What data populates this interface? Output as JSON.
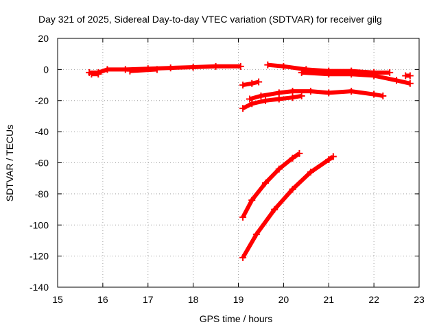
{
  "chart_data": {
    "type": "scatter",
    "title": "Day 321 of 2025, Sidereal Day-to-day VTEC variation (SDTVAR) for receiver gilg",
    "xlabel": "GPS time / hours",
    "ylabel": "SDTVAR / TECUs",
    "xlim": [
      15,
      23
    ],
    "ylim": [
      -140,
      20
    ],
    "xticks": [
      "15",
      "16",
      "17",
      "18",
      "19",
      "20",
      "21",
      "22",
      "23"
    ],
    "yticks": [
      "20",
      "0",
      "-20",
      "-40",
      "-60",
      "-80",
      "-100",
      "-120",
      "-140"
    ],
    "grid": true,
    "marker_color": "#ff0000",
    "series": [
      {
        "x": [
          15.7,
          15.9,
          16.1,
          16.5,
          17.0,
          17.5,
          18.0,
          18.5,
          19.05
        ],
        "y": [
          -2,
          -2,
          0,
          0,
          0.5,
          1,
          1.5,
          2,
          2
        ]
      },
      {
        "x": [
          15.75,
          15.9
        ],
        "y": [
          -3,
          -3
        ]
      },
      {
        "x": [
          16.6,
          17.2
        ],
        "y": [
          -1,
          0
        ]
      },
      {
        "x": [
          19.65,
          20.0,
          20.5,
          21.0,
          21.5,
          22.0,
          22.35
        ],
        "y": [
          3,
          2,
          0,
          -1,
          -1,
          -2,
          -2
        ]
      },
      {
        "x": [
          20.4,
          21.0,
          21.5,
          22.0,
          22.5,
          22.8
        ],
        "y": [
          -2,
          -3,
          -3,
          -4,
          -7,
          -9
        ]
      },
      {
        "x": [
          22.7,
          22.8
        ],
        "y": [
          -4,
          -4
        ]
      },
      {
        "x": [
          19.1,
          19.3,
          19.45
        ],
        "y": [
          -10,
          -9,
          -8
        ]
      },
      {
        "x": [
          19.25,
          19.5,
          19.9,
          20.2,
          20.6,
          21.0,
          21.5,
          22.0,
          22.2
        ],
        "y": [
          -19,
          -17,
          -15,
          -14,
          -14,
          -15,
          -14,
          -16,
          -17
        ]
      },
      {
        "x": [
          19.1,
          19.3,
          19.6,
          19.9,
          20.2,
          20.4
        ],
        "y": [
          -25,
          -22,
          -20,
          -19,
          -18,
          -17
        ]
      },
      {
        "x": [
          19.1,
          19.3,
          19.6,
          19.9,
          20.2,
          20.35
        ],
        "y": [
          -95,
          -84,
          -73,
          -64,
          -57,
          -54
        ]
      },
      {
        "x": [
          19.1,
          19.4,
          19.8,
          20.2,
          20.6,
          21.0,
          21.1
        ],
        "y": [
          -121,
          -106,
          -90,
          -77,
          -66,
          -58,
          -56
        ]
      }
    ]
  }
}
